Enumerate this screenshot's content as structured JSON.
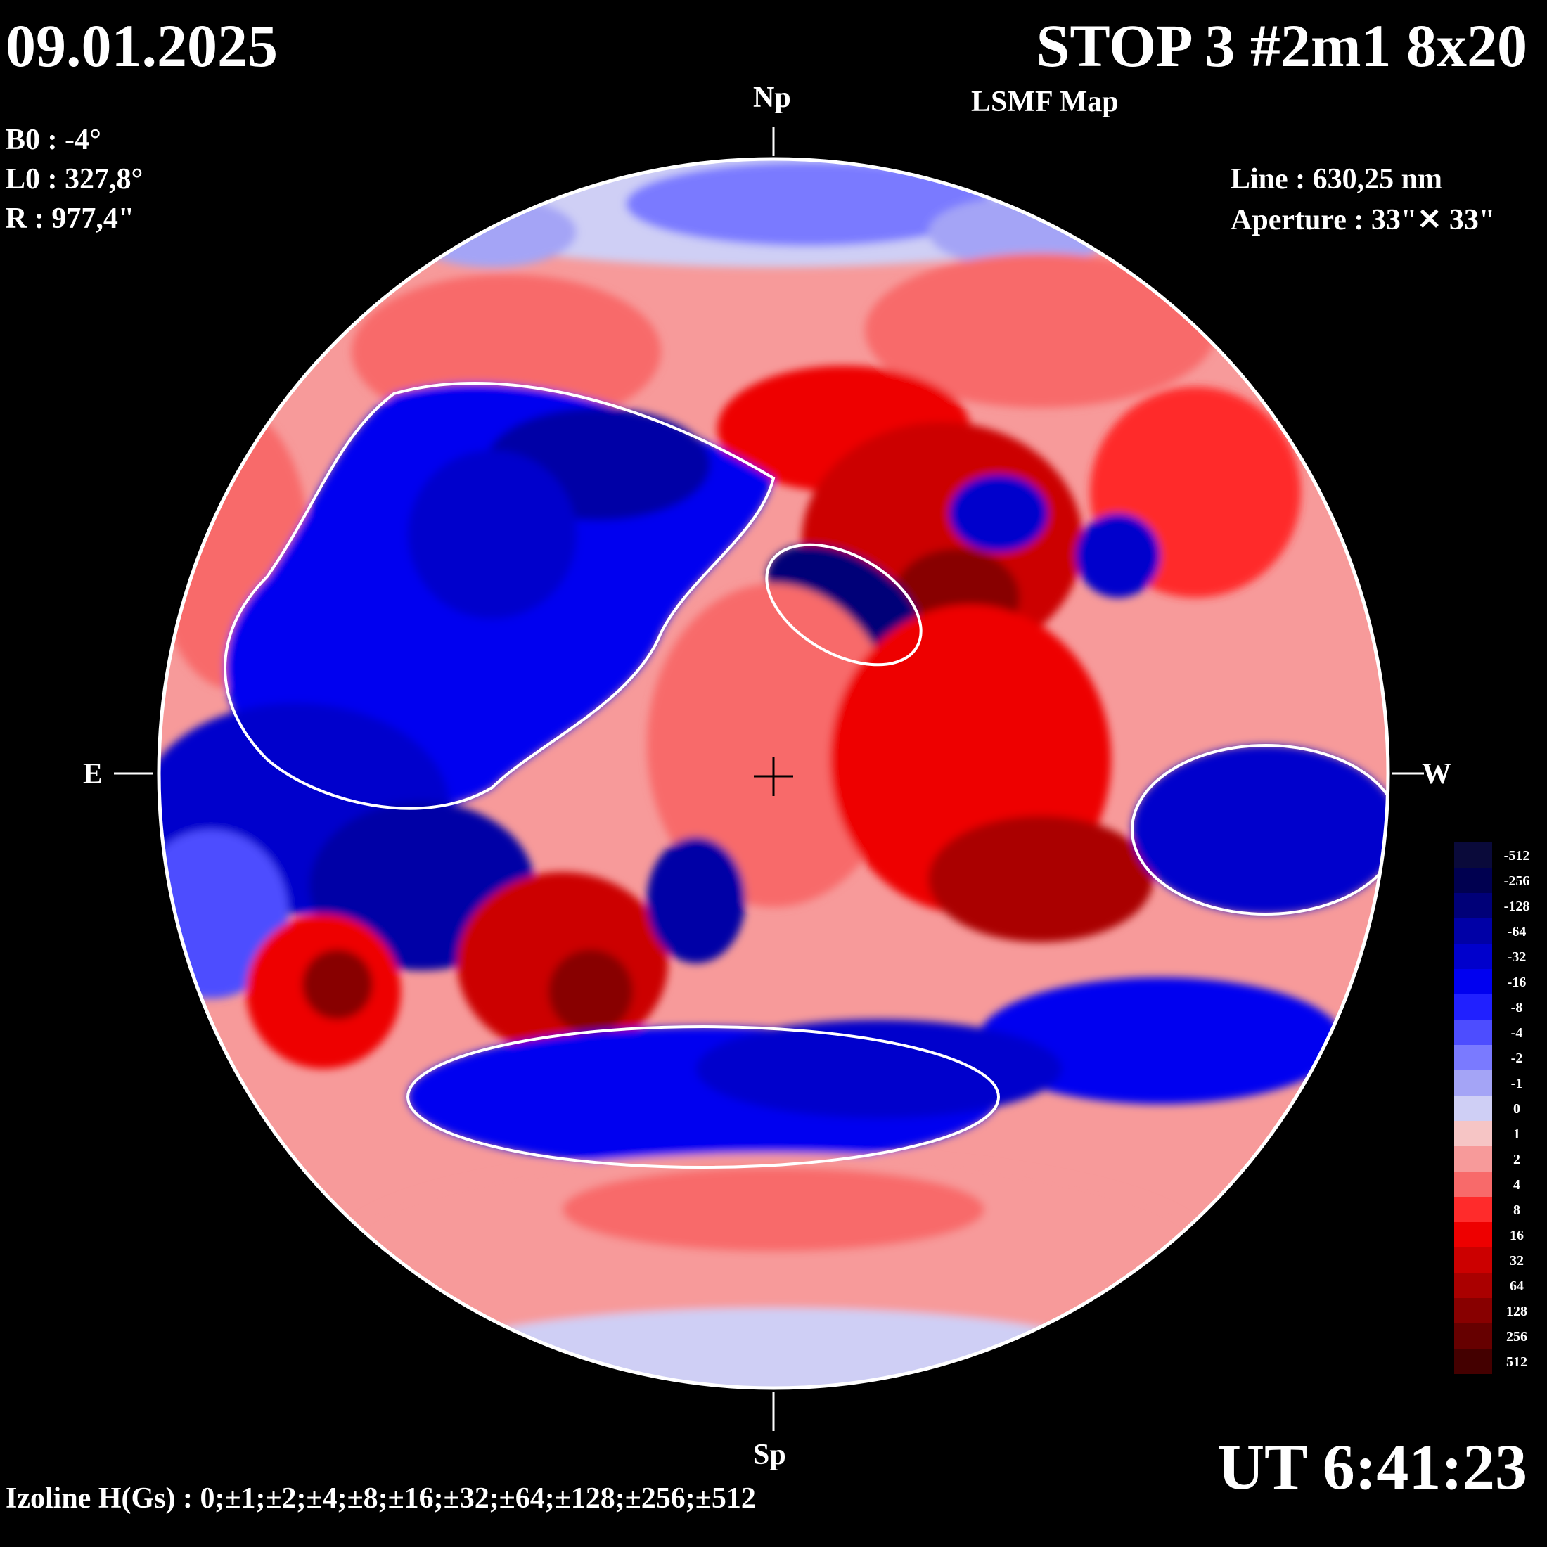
{
  "header": {
    "date": "09.01.2025",
    "title": "STOP 3 #2m1 8x20",
    "subtitle": "LSMF  Map"
  },
  "params_left": [
    "B0 : -4°",
    "L0 : 327,8°",
    "R  : 977,4\""
  ],
  "params_right": [
    "Line :  630,25 nm",
    "Aperture : 33\"✕ 33\""
  ],
  "compass": {
    "north": "Np",
    "south": "Sp",
    "east": "E",
    "west": "W"
  },
  "footer": {
    "ut": "UT 6:41:23",
    "izoline": "Izoline H(Gs) : 0;±1;±2;±4;±8;±16;±32;±64;±128;±256;±512"
  },
  "color_scale": {
    "levels": [
      {
        "label": "-512",
        "color": "#0a0a3a"
      },
      {
        "label": "-256",
        "color": "#000050"
      },
      {
        "label": "-128",
        "color": "#000078"
      },
      {
        "label": "-64",
        "color": "#0000a6"
      },
      {
        "label": "-32",
        "color": "#0000cc"
      },
      {
        "label": "-16",
        "color": "#0000f0"
      },
      {
        "label": "-8",
        "color": "#2020ff"
      },
      {
        "label": "-4",
        "color": "#4d4dff"
      },
      {
        "label": "-2",
        "color": "#7a7aff"
      },
      {
        "label": "-1",
        "color": "#a4a4f6"
      },
      {
        "label": "0",
        "color": "#cfcff5"
      },
      {
        "label": "1",
        "color": "#f6c5c5"
      },
      {
        "label": "2",
        "color": "#f79a9a"
      },
      {
        "label": "4",
        "color": "#f86a6a"
      },
      {
        "label": "8",
        "color": "#ff2b2b"
      },
      {
        "label": "16",
        "color": "#ee0000"
      },
      {
        "label": "32",
        "color": "#cc0000"
      },
      {
        "label": "64",
        "color": "#aa0000"
      },
      {
        "label": "128",
        "color": "#880000"
      },
      {
        "label": "256",
        "color": "#660000"
      },
      {
        "label": "512",
        "color": "#440000"
      }
    ]
  }
}
